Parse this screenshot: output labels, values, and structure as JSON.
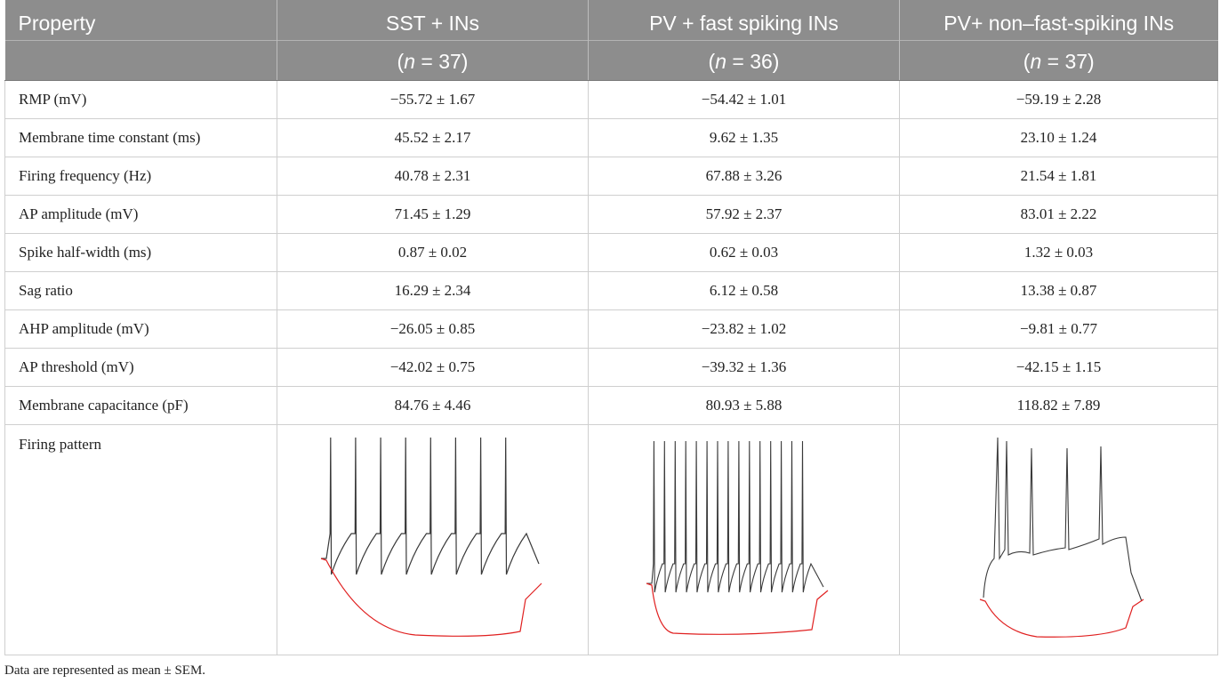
{
  "table": {
    "header": {
      "property_label": "Property",
      "groups": [
        {
          "name": "SST + INs",
          "n_label": "n",
          "n_value": "= 37"
        },
        {
          "name": "PV + fast spiking INs",
          "n_label": "n",
          "n_value": "= 36"
        },
        {
          "name": "PV+ non–fast-spiking INs",
          "n_label": "n",
          "n_value": "= 37"
        }
      ]
    },
    "rows": [
      {
        "property": "RMP (mV)",
        "values": [
          "−55.72 ± 1.67",
          "−54.42 ± 1.01",
          "−59.19 ± 2.28"
        ]
      },
      {
        "property": "Membrane time constant (ms)",
        "values": [
          "45.52 ± 2.17",
          "9.62 ± 1.35",
          "23.10 ± 1.24"
        ]
      },
      {
        "property": "Firing frequency (Hz)",
        "values": [
          "40.78 ± 2.31",
          "67.88 ± 3.26",
          "21.54 ± 1.81"
        ]
      },
      {
        "property": "AP amplitude (mV)",
        "values": [
          "71.45 ± 1.29",
          "57.92 ± 2.37",
          "83.01 ± 2.22"
        ]
      },
      {
        "property": "Spike half-width (ms)",
        "values": [
          "0.87 ± 0.02",
          "0.62 ± 0.03",
          "1.32 ± 0.03"
        ]
      },
      {
        "property": "Sag ratio",
        "values": [
          "16.29 ± 2.34",
          "6.12 ± 0.58",
          "13.38 ± 0.87"
        ]
      },
      {
        "property": "AHP amplitude (mV)",
        "values": [
          "−26.05 ± 0.85",
          "−23.82 ± 1.02",
          "−9.81 ± 0.77"
        ]
      },
      {
        "property": "AP threshold (mV)",
        "values": [
          "−42.02 ± 0.75",
          "−39.32 ± 1.36",
          "−42.15 ± 1.15"
        ]
      },
      {
        "property": "Membrane capacitance (pF)",
        "values": [
          "84.76 ± 4.46",
          "80.93 ± 5.88",
          "118.82 ± 7.89"
        ]
      }
    ],
    "firing_row": {
      "property": "Firing pattern",
      "trace_colors": {
        "depolarizing": "#3a3a3a",
        "hyperpolarizing": "#e02020"
      }
    }
  },
  "footnote": "Data are represented as mean ± SEM.",
  "colors": {
    "header_bg": "#8d8d8d",
    "header_text": "#ffffff",
    "grid": "#cfcfcf"
  }
}
